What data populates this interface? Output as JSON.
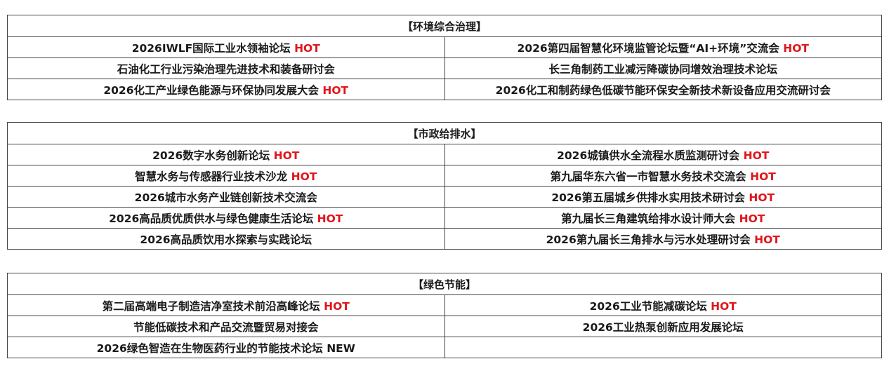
{
  "sections": [
    {
      "title": "【环境综合治理】",
      "rows": [
        [
          {
            "text": "2026IWLF国际工业水领袖论坛",
            "badge": "HOT"
          },
          {
            "text": "2026第四届智慧化环境监管论坛暨“AI+环境”交流会",
            "badge": "HOT"
          }
        ],
        [
          {
            "text": "石油化工行业污染治理先进技术和装备研讨会",
            "badge": ""
          },
          {
            "text": "长三角制药工业减污降碳协同增效治理技术论坛",
            "badge": ""
          }
        ],
        [
          {
            "text": "2026化工产业绿色能源与环保协同发展大会",
            "badge": "HOT"
          },
          {
            "text": "2026化工和制药绿色低碳节能环保安全新技术新设备应用交流研讨会",
            "badge": ""
          }
        ]
      ]
    },
    {
      "title": "【市政给排水】",
      "rows": [
        [
          {
            "text": "2026数字水务创新论坛",
            "badge": "HOT"
          },
          {
            "text": "2026城镇供水全流程水质监测研讨会",
            "badge": "HOT"
          }
        ],
        [
          {
            "text": "智慧水务与传感器行业技术沙龙",
            "badge": "HOT"
          },
          {
            "text": "第九届华东六省一市智慧水务技术交流会",
            "badge": "HOT"
          }
        ],
        [
          {
            "text": "2026城市水务产业链创新技术交流会",
            "badge": ""
          },
          {
            "text": "2026第五届城乡供排水实用技术研讨会",
            "badge": "HOT"
          }
        ],
        [
          {
            "text": "2026高品质优质供水与绿色健康生活论坛",
            "badge": "HOT"
          },
          {
            "text": "第九届长三角建筑给排水设计师大会",
            "badge": "HOT"
          }
        ],
        [
          {
            "text": "2026高品质饮用水探索与实践论坛",
            "badge": ""
          },
          {
            "text": "2026第九届长三角排水与污水处理研讨会",
            "badge": "HOT"
          }
        ]
      ]
    },
    {
      "title": "【绿色节能】",
      "rows": [
        [
          {
            "text": "第二届高端电子制造洁净室技术前沿高峰论坛",
            "badge": "HOT"
          },
          {
            "text": "2026工业节能减碳论坛",
            "badge": "HOT"
          }
        ],
        [
          {
            "text": "节能低碳技术和产品交流暨贸易对接会",
            "badge": ""
          },
          {
            "text": "2026工业热泵创新应用发展论坛",
            "badge": ""
          }
        ],
        [
          {
            "text": "2026绿色智造在生物医药行业的节能技术论坛",
            "badge": "NEW"
          },
          {
            "text": "",
            "badge": ""
          }
        ]
      ]
    }
  ],
  "colors": {
    "hot": "#e0161b",
    "new": "#1a1a1a",
    "border": "#444444"
  }
}
